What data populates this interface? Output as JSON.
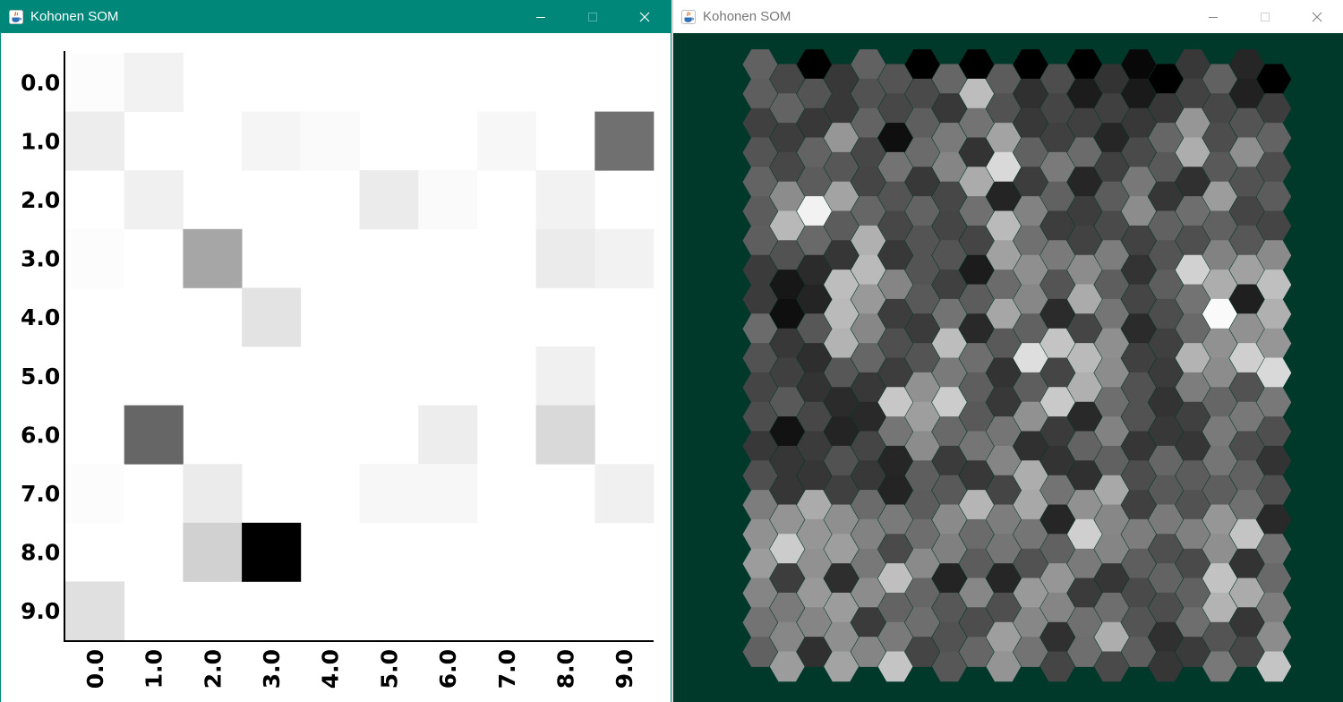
{
  "colors": {
    "active_titlebar": "#00877a",
    "inactive_titlebar": "#ffffff",
    "hex_background": "#00382a",
    "heatmap_background": "#ffffff"
  },
  "heatmap_window": {
    "title": "Kohonen SOM",
    "icon": "java-app-icon",
    "controls": [
      "minimize-icon",
      "maximize-icon",
      "close-icon"
    ]
  },
  "hexmap_window": {
    "title": "Kohonen SOM",
    "icon": "java-app-icon",
    "controls": [
      "minimize-icon",
      "maximize-icon",
      "close-icon"
    ]
  },
  "chart_data": [
    {
      "type": "heatmap",
      "xticks": [
        "0.0",
        "1.0",
        "2.0",
        "3.0",
        "4.0",
        "5.0",
        "6.0",
        "7.0",
        "8.0",
        "9.0"
      ],
      "yticks": [
        "0.0",
        "1.0",
        "2.0",
        "3.0",
        "4.0",
        "5.0",
        "6.0",
        "7.0",
        "8.0",
        "9.0"
      ],
      "grid": false,
      "color_scale": "white = 0, black = 1",
      "values": [
        [
          0.01,
          0.05,
          0,
          0,
          0,
          0,
          0,
          0,
          0,
          0
        ],
        [
          0.07,
          0,
          0,
          0.04,
          0.02,
          0,
          0,
          0.03,
          0,
          0.56
        ],
        [
          0,
          0.06,
          0,
          0,
          0,
          0.08,
          0.02,
          0,
          0.05,
          0
        ],
        [
          0.01,
          0,
          0.35,
          0,
          0,
          0,
          0,
          0,
          0.08,
          0.05
        ],
        [
          0,
          0,
          0,
          0.11,
          0,
          0,
          0,
          0,
          0,
          0
        ],
        [
          0,
          0,
          0,
          0,
          0,
          0,
          0,
          0,
          0.06,
          0
        ],
        [
          0,
          0.6,
          0,
          0,
          0,
          0,
          0.07,
          0,
          0.15,
          0
        ],
        [
          0.01,
          0,
          0.08,
          0,
          0,
          0.03,
          0.03,
          0,
          0,
          0.06
        ],
        [
          0,
          0,
          0.18,
          1.0,
          0,
          0,
          0,
          0,
          0,
          0
        ],
        [
          0.12,
          0,
          0,
          0,
          0,
          0,
          0,
          0,
          0,
          0
        ]
      ]
    },
    {
      "type": "heatmap",
      "layout": "hexagonal",
      "columns": 20,
      "rows": 21,
      "color_scale": "grayscale",
      "values": [
        [
          0.38,
          0.28,
          0,
          0.22,
          0.38,
          0.33,
          0,
          0.4,
          0,
          0.36,
          0,
          0.3,
          0,
          0.2,
          0.03,
          0,
          0.22,
          0.38,
          0.15,
          0
        ],
        [
          0.37,
          0.39,
          0.33,
          0.22,
          0.32,
          0.28,
          0.29,
          0.22,
          0.74,
          0.32,
          0.19,
          0.27,
          0.11,
          0.25,
          0.1,
          0.22,
          0.26,
          0.28,
          0.13,
          0.24
        ],
        [
          0.25,
          0.24,
          0.22,
          0.59,
          0.39,
          0.06,
          0.37,
          0.48,
          0.45,
          0.64,
          0.22,
          0.25,
          0.25,
          0.15,
          0.22,
          0.4,
          0.59,
          0.3,
          0.33,
          0.39
        ],
        [
          0.33,
          0.28,
          0.39,
          0.34,
          0.28,
          0.45,
          0.42,
          0.52,
          0.2,
          0.85,
          0.38,
          0.48,
          0.42,
          0.25,
          0.29,
          0.35,
          0.68,
          0.35,
          0.56,
          0.3
        ],
        [
          0.39,
          0.55,
          0.36,
          0.64,
          0.27,
          0.33,
          0.22,
          0.28,
          0.67,
          0.14,
          0.24,
          0.38,
          0.15,
          0.36,
          0.47,
          0.21,
          0.19,
          0.61,
          0.32,
          0.36
        ],
        [
          0.36,
          0.72,
          0.95,
          0.36,
          0.4,
          0.28,
          0.39,
          0.27,
          0.44,
          0.73,
          0.51,
          0.24,
          0.24,
          0.29,
          0.55,
          0.38,
          0.43,
          0.38,
          0.27,
          0.27
        ],
        [
          0.37,
          0.32,
          0.41,
          0.21,
          0.69,
          0.22,
          0.33,
          0.33,
          0.27,
          0.63,
          0.44,
          0.48,
          0.26,
          0.49,
          0.26,
          0.33,
          0.31,
          0.51,
          0.34,
          0.54
        ],
        [
          0.23,
          0.09,
          0.17,
          0.74,
          0.73,
          0.52,
          0.33,
          0.25,
          0.11,
          0.42,
          0.56,
          0.33,
          0.55,
          0.37,
          0.2,
          0.37,
          0.82,
          0.68,
          0.63,
          0.75
        ],
        [
          0.23,
          0.06,
          0.14,
          0.73,
          0.6,
          0.24,
          0.35,
          0.45,
          0.36,
          0.65,
          0.53,
          0.17,
          0.67,
          0.46,
          0.27,
          0.3,
          0.45,
          0.98,
          0.12,
          0.69
        ],
        [
          0.42,
          0.22,
          0.34,
          0.7,
          0.53,
          0.31,
          0.23,
          0.74,
          0.16,
          0.35,
          0.38,
          0.77,
          0.27,
          0.56,
          0.17,
          0.25,
          0.41,
          0.57,
          0.57,
          0.59
        ],
        [
          0.32,
          0.25,
          0.18,
          0.34,
          0.4,
          0.24,
          0.33,
          0.48,
          0.43,
          0.2,
          0.87,
          0.27,
          0.73,
          0.55,
          0.25,
          0.23,
          0.7,
          0.55,
          0.81,
          0.85
        ],
        [
          0.27,
          0.35,
          0.2,
          0.17,
          0.22,
          0.78,
          0.57,
          0.8,
          0.37,
          0.22,
          0.37,
          0.79,
          0.69,
          0.43,
          0.32,
          0.2,
          0.49,
          0.4,
          0.32,
          0.47
        ],
        [
          0.3,
          0.07,
          0.28,
          0.14,
          0.16,
          0.46,
          0.62,
          0.41,
          0.35,
          0.46,
          0.57,
          0.23,
          0.16,
          0.51,
          0.32,
          0.22,
          0.25,
          0.48,
          0.47,
          0.31
        ],
        [
          0.22,
          0.21,
          0.23,
          0.32,
          0.27,
          0.15,
          0.55,
          0.23,
          0.46,
          0.52,
          0.19,
          0.2,
          0.39,
          0.38,
          0.21,
          0.4,
          0.21,
          0.46,
          0.3,
          0.2
        ],
        [
          0.31,
          0.21,
          0.21,
          0.25,
          0.22,
          0.14,
          0.37,
          0.35,
          0.22,
          0.27,
          0.68,
          0.45,
          0.19,
          0.66,
          0.3,
          0.35,
          0.36,
          0.37,
          0.38,
          0.31
        ],
        [
          0.49,
          0.58,
          0.67,
          0.56,
          0.42,
          0.48,
          0.36,
          0.54,
          0.71,
          0.49,
          0.66,
          0.15,
          0.57,
          0.53,
          0.25,
          0.48,
          0.32,
          0.59,
          0.44,
          0.16
        ],
        [
          0.57,
          0.8,
          0.59,
          0.62,
          0.51,
          0.29,
          0.43,
          0.5,
          0.42,
          0.46,
          0.46,
          0.38,
          0.81,
          0.52,
          0.49,
          0.31,
          0.5,
          0.56,
          0.77,
          0.44
        ],
        [
          0.61,
          0.24,
          0.57,
          0.18,
          0.47,
          0.75,
          0.54,
          0.14,
          0.36,
          0.15,
          0.32,
          0.59,
          0.48,
          0.21,
          0.37,
          0.39,
          0.29,
          0.76,
          0.2,
          0.41
        ],
        [
          0.52,
          0.48,
          0.6,
          0.61,
          0.55,
          0.39,
          0.4,
          0.34,
          0.53,
          0.31,
          0.6,
          0.52,
          0.23,
          0.43,
          0.29,
          0.3,
          0.38,
          0.7,
          0.67,
          0.49
        ],
        [
          0.45,
          0.53,
          0.52,
          0.56,
          0.23,
          0.48,
          0.43,
          0.32,
          0.3,
          0.62,
          0.53,
          0.19,
          0.44,
          0.68,
          0.33,
          0.19,
          0.43,
          0.33,
          0.21,
          0.55
        ],
        [
          0.38,
          0.61,
          0.19,
          0.64,
          0.52,
          0.77,
          0.27,
          0.34,
          0.4,
          0.58,
          0.45,
          0.27,
          0.43,
          0.29,
          0.37,
          0.21,
          0.23,
          0.47,
          0.28,
          0.77
        ]
      ]
    }
  ]
}
